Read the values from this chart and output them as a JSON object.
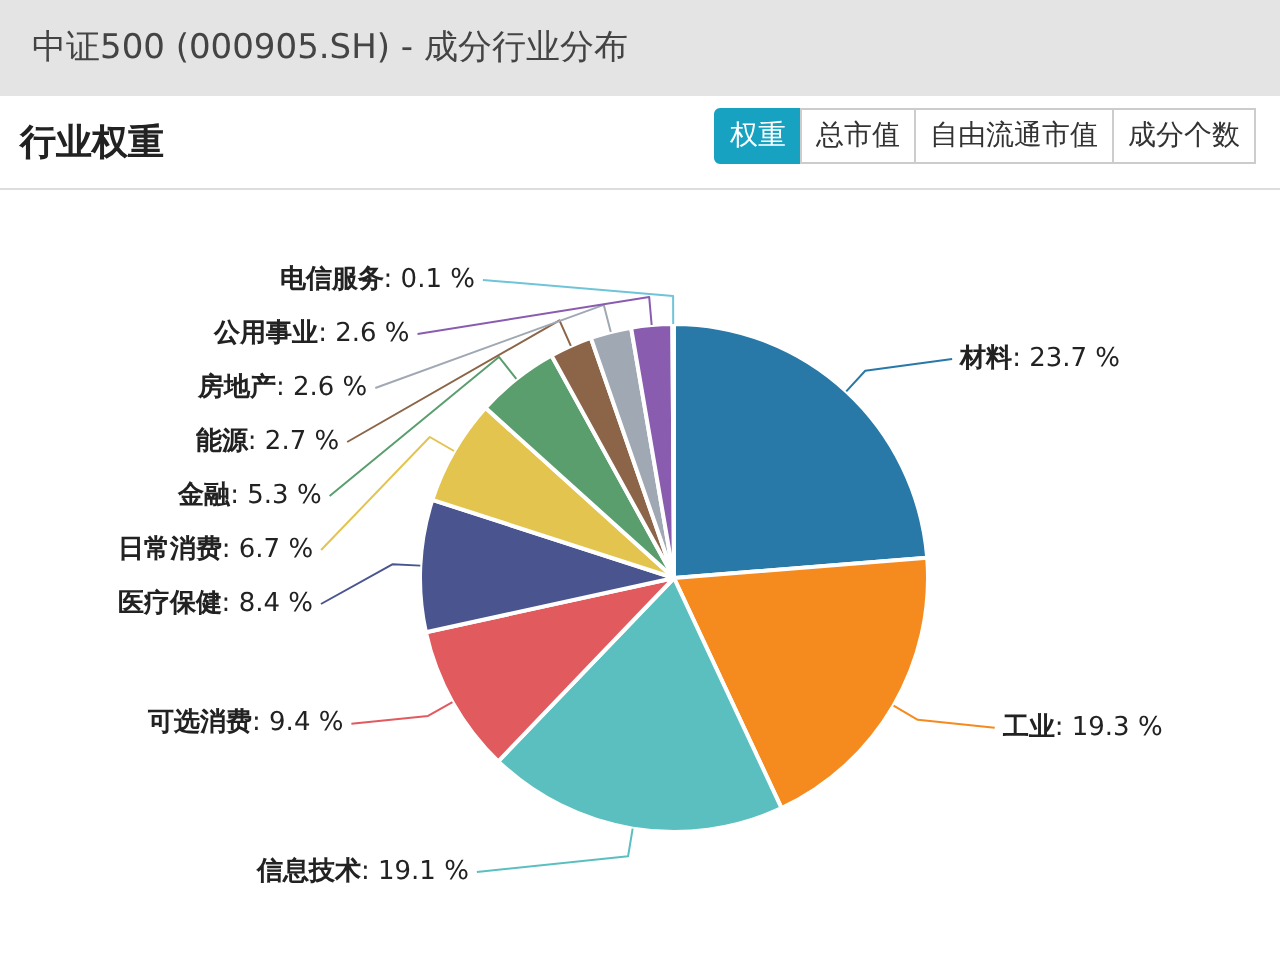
{
  "chart_data": {
    "type": "pie",
    "title": "中证500 (000905.SH) - 成分行业分布",
    "subtitle": "行业权重",
    "annotations": [
      "权重",
      "总市值",
      "自由流通市值",
      "成分个数"
    ],
    "categories": [
      "材料",
      "工业",
      "信息技术",
      "可选消费",
      "医疗保健",
      "日常消费",
      "金融",
      "能源",
      "房地产",
      "公用事业",
      "电信服务"
    ],
    "values": [
      23.7,
      19.3,
      19.1,
      9.4,
      8.4,
      6.7,
      5.3,
      2.7,
      2.6,
      2.6,
      0.1
    ],
    "value_labels": [
      ": 23.7 %",
      ": 19.3 %",
      ": 19.1 %",
      ": 9.4 %",
      ": 8.4 %",
      ": 6.7 %",
      ": 5.3 %",
      ": 2.7 %",
      ": 2.6 %",
      ": 2.6 %",
      ": 0.1 %"
    ],
    "colors": [
      "#2878a8",
      "#f58a1e",
      "#5bbfbf",
      "#e05a5e",
      "#4a5590",
      "#e3c44f",
      "#5a9e6e",
      "#8c6548",
      "#a0a8b4",
      "#8a5cb0",
      "#6fc4d8"
    ],
    "legend": false
  }
}
